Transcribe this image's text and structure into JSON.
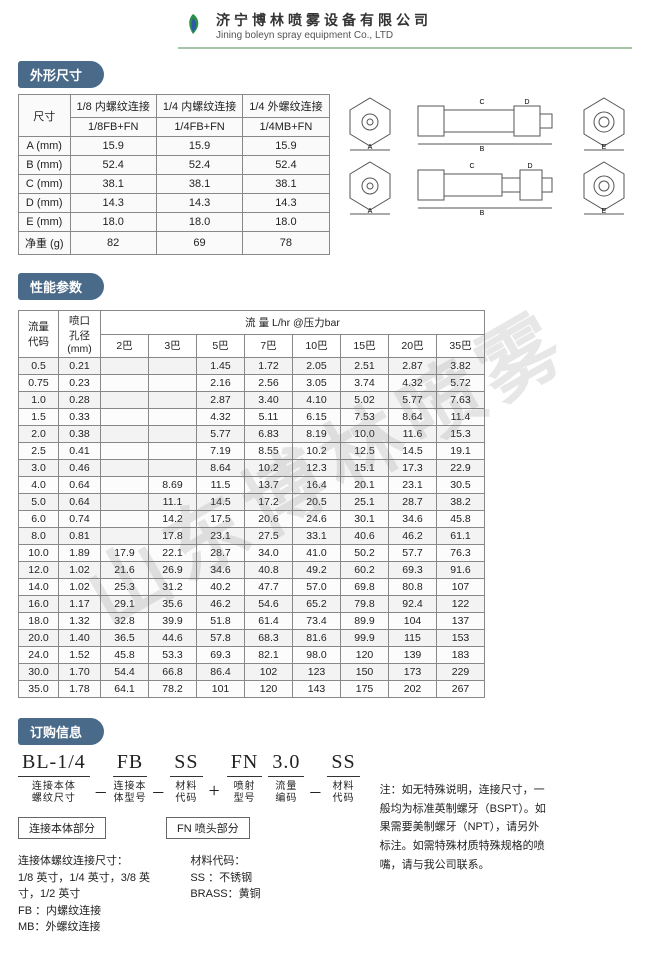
{
  "header": {
    "cn": "济宁博林喷雾设备有限公司",
    "en": "Jining boleyn spray equipment Co., LTD"
  },
  "watermark": "山东博林喷雾",
  "sections": {
    "dims": "外形尺寸",
    "perf": "性能参数",
    "order": "订购信息"
  },
  "dim_table": {
    "hcorner": "尺寸",
    "cols": [
      {
        "l1": "1/8 内螺纹连接",
        "l2": "1/8FB+FN"
      },
      {
        "l1": "1/4 内螺纹连接",
        "l2": "1/4FB+FN"
      },
      {
        "l1": "1/4 外螺纹连接",
        "l2": "1/4MB+FN"
      }
    ],
    "rows": [
      {
        "k": "A (mm)",
        "v": [
          "15.9",
          "15.9",
          "15.9"
        ]
      },
      {
        "k": "B (mm)",
        "v": [
          "52.4",
          "52.4",
          "52.4"
        ]
      },
      {
        "k": "C (mm)",
        "v": [
          "38.1",
          "38.1",
          "38.1"
        ]
      },
      {
        "k": "D (mm)",
        "v": [
          "14.3",
          "14.3",
          "14.3"
        ]
      },
      {
        "k": "E (mm)",
        "v": [
          "18.0",
          "18.0",
          "18.0"
        ]
      },
      {
        "k": "净重 (g)",
        "v": [
          "82",
          "69",
          "78"
        ]
      }
    ]
  },
  "perf_table": {
    "h_flowcode": "流量\n代码",
    "h_orifice": "喷口\n孔径\n(mm)",
    "h_flow_title": "流 量   L/hr @压力bar",
    "bar_cols": [
      "2巴",
      "3巴",
      "5巴",
      "7巴",
      "10巴",
      "15巴",
      "20巴",
      "35巴"
    ],
    "rows": [
      [
        "0.5",
        "0.21",
        "",
        "",
        "1.45",
        "1.72",
        "2.05",
        "2.51",
        "2.87",
        "3.82"
      ],
      [
        "0.75",
        "0.23",
        "",
        "",
        "2.16",
        "2.56",
        "3.05",
        "3.74",
        "4.32",
        "5.72"
      ],
      [
        "1.0",
        "0.28",
        "",
        "",
        "2.87",
        "3.40",
        "4.10",
        "5.02",
        "5.77",
        "7.63"
      ],
      [
        "1.5",
        "0.33",
        "",
        "",
        "4.32",
        "5.11",
        "6.15",
        "7.53",
        "8.64",
        "11.4"
      ],
      [
        "2.0",
        "0.38",
        "",
        "",
        "5.77",
        "6.83",
        "8.19",
        "10.0",
        "11.6",
        "15.3"
      ],
      [
        "2.5",
        "0.41",
        "",
        "",
        "7.19",
        "8.55",
        "10.2",
        "12.5",
        "14.5",
        "19.1"
      ],
      [
        "3.0",
        "0.46",
        "",
        "",
        "8.64",
        "10.2",
        "12.3",
        "15.1",
        "17.3",
        "22.9"
      ],
      [
        "4.0",
        "0.64",
        "",
        "8.69",
        "11.5",
        "13.7",
        "16.4",
        "20.1",
        "23.1",
        "30.5"
      ],
      [
        "5.0",
        "0.64",
        "",
        "11.1",
        "14.5",
        "17.2",
        "20.5",
        "25.1",
        "28.7",
        "38.2"
      ],
      [
        "6.0",
        "0.74",
        "",
        "14.2",
        "17.5",
        "20.6",
        "24.6",
        "30.1",
        "34.6",
        "45.8"
      ],
      [
        "8.0",
        "0.81",
        "",
        "17.8",
        "23.1",
        "27.5",
        "33.1",
        "40.6",
        "46.2",
        "61.1"
      ],
      [
        "10.0",
        "1.89",
        "17.9",
        "22.1",
        "28.7",
        "34.0",
        "41.0",
        "50.2",
        "57.7",
        "76.3"
      ],
      [
        "12.0",
        "1.02",
        "21.6",
        "26.9",
        "34.6",
        "40.8",
        "49.2",
        "60.2",
        "69.3",
        "91.6"
      ],
      [
        "14.0",
        "1.02",
        "25.3",
        "31.2",
        "40.2",
        "47.7",
        "57.0",
        "69.8",
        "80.8",
        "107"
      ],
      [
        "16.0",
        "1.17",
        "29.1",
        "35.6",
        "46.2",
        "54.6",
        "65.2",
        "79.8",
        "92.4",
        "122"
      ],
      [
        "18.0",
        "1.32",
        "32.8",
        "39.9",
        "51.8",
        "61.4",
        "73.4",
        "89.9",
        "104",
        "137"
      ],
      [
        "20.0",
        "1.40",
        "36.5",
        "44.6",
        "57.8",
        "68.3",
        "81.6",
        "99.9",
        "115",
        "153"
      ],
      [
        "24.0",
        "1.52",
        "45.8",
        "53.3",
        "69.3",
        "82.1",
        "98.0",
        "120",
        "139",
        "183"
      ],
      [
        "30.0",
        "1.70",
        "54.4",
        "66.8",
        "86.4",
        "102",
        "123",
        "150",
        "173",
        "229"
      ],
      [
        "35.0",
        "1.78",
        "64.1",
        "78.2",
        "101",
        "120",
        "143",
        "175",
        "202",
        "267"
      ]
    ]
  },
  "order": {
    "parts": [
      {
        "code": "BL-1/4",
        "label": "连接本体\n螺纹尺寸"
      },
      {
        "code": "FB",
        "label": "连接本\n体型号"
      },
      {
        "code": "SS",
        "label": "材料\n代码"
      },
      {
        "code": "FN",
        "label": "喷射\n型号"
      },
      {
        "code": "3.0",
        "label": "流量\n编码"
      },
      {
        "code": "SS",
        "label": "材料\n代码"
      }
    ],
    "sep_dash": "–",
    "sep_plus": "+",
    "group1": "连接本体部分",
    "group2": "FN 喷头部分",
    "foot_left_title": "连接体螺纹连接尺寸：",
    "foot_left_l1": "1/8 英寸，1/4 英寸，3/8 英寸，1/2 英寸",
    "foot_left_l2": "FB ：内螺纹连接",
    "foot_left_l3": "MB：外螺纹连接",
    "foot_right_title": "材料代码：",
    "foot_right_l1": "SS   ：不锈钢",
    "foot_right_l2": "BRASS：黄铜",
    "note": "注：如无特殊说明，连接尺寸，一般均为标准英制螺牙（BSPT）。如果需要美制螺牙（NPT），请另外标注。如需特殊材质特殊规格的喷嘴，请与我公司联系。"
  },
  "colors": {
    "pill": "#4a6a8a",
    "border": "#888888",
    "headline": "#a8c4a8",
    "logo_outer": "#2b8f4c",
    "logo_inner": "#2d5aa8"
  }
}
